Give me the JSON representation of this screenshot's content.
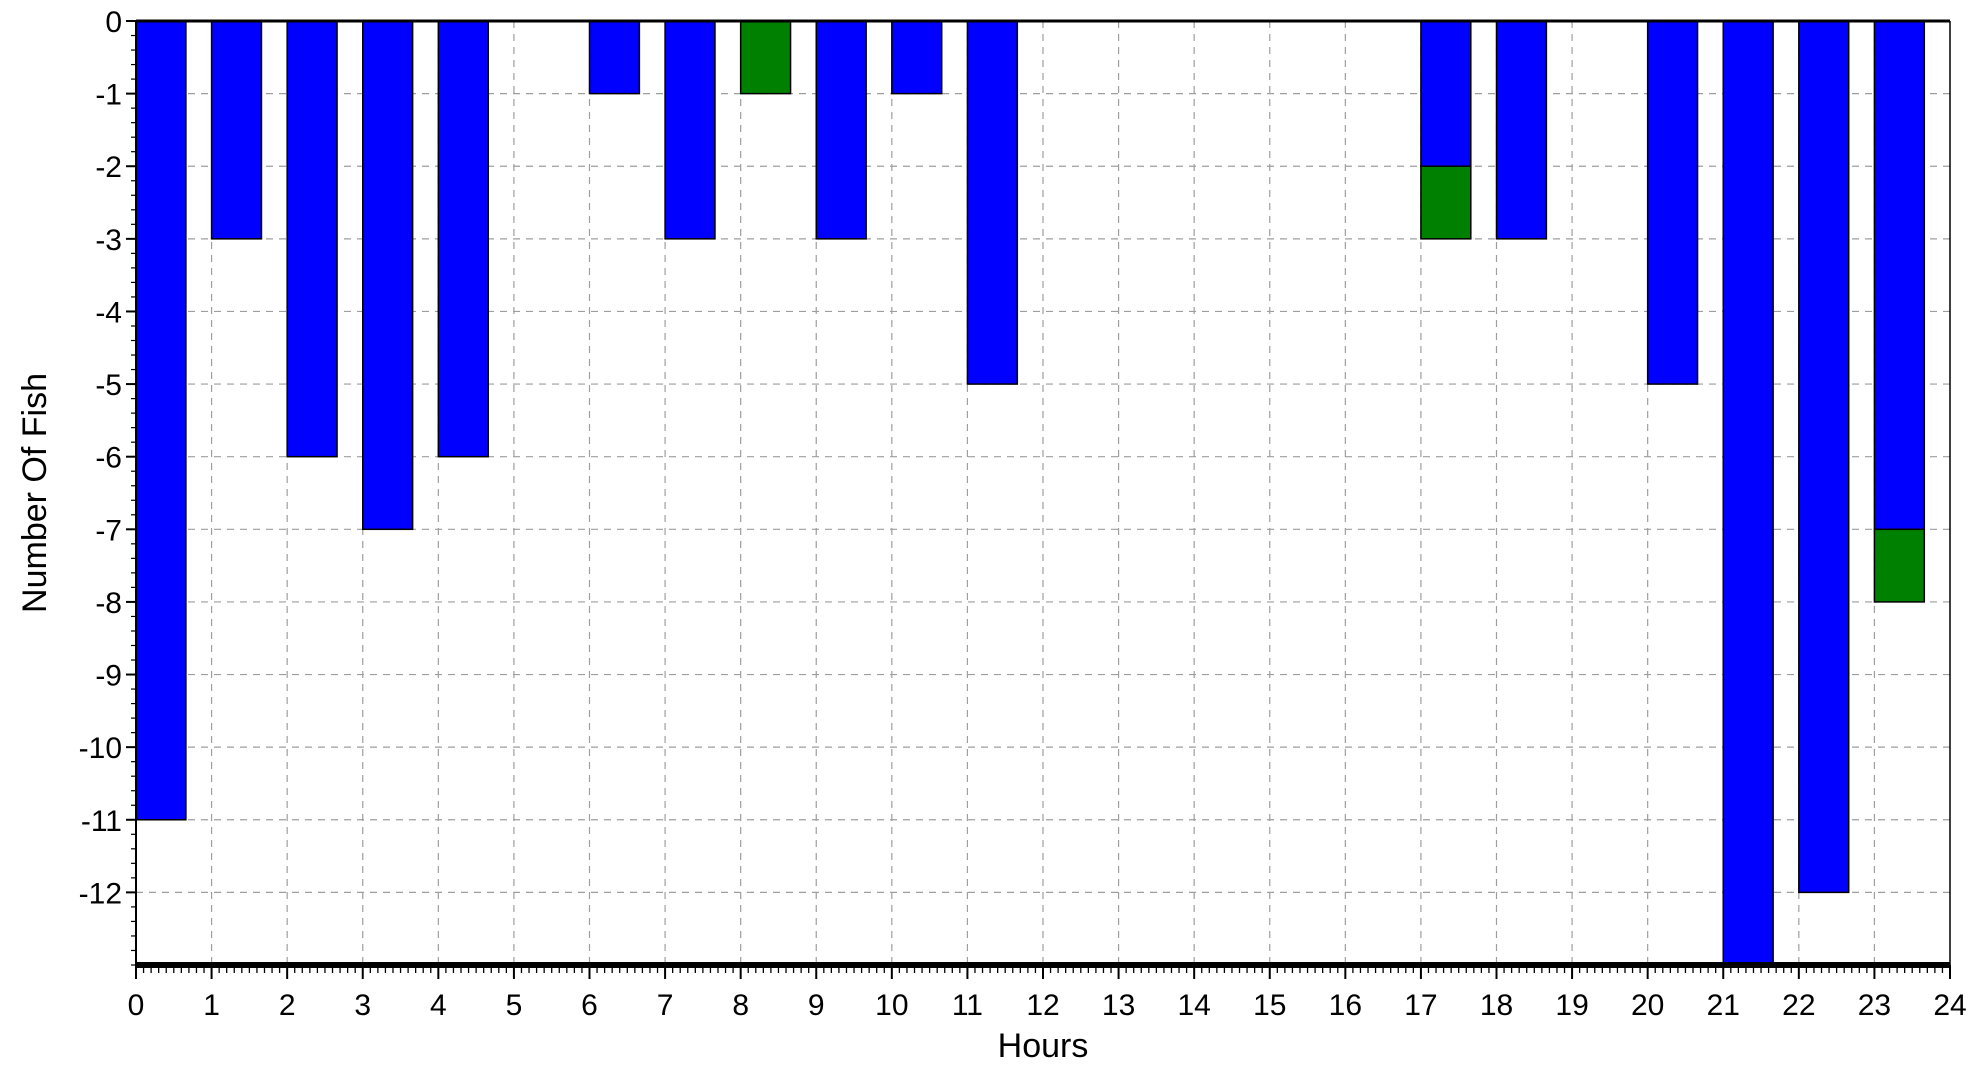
{
  "chart_data": {
    "type": "bar",
    "stacked": true,
    "xlabel": "Hours",
    "ylabel": "Number Of Fish",
    "xlim": [
      0,
      24
    ],
    "ylim": [
      -13,
      0
    ],
    "x_ticks": [
      "0",
      "1",
      "2",
      "3",
      "4",
      "5",
      "6",
      "7",
      "8",
      "9",
      "10",
      "11",
      "12",
      "13",
      "14",
      "15",
      "16",
      "17",
      "18",
      "19",
      "20",
      "21",
      "22",
      "23",
      "24"
    ],
    "y_ticks": [
      "0",
      "-1",
      "-2",
      "-3",
      "-4",
      "-5",
      "-6",
      "-7",
      "-8",
      "-9",
      "-10",
      "-11",
      "-12"
    ],
    "grid": true,
    "categories": [
      0,
      1,
      2,
      3,
      4,
      5,
      6,
      7,
      8,
      9,
      10,
      11,
      12,
      13,
      14,
      15,
      16,
      17,
      18,
      19,
      20,
      21,
      22,
      23
    ],
    "series": [
      {
        "color": "#0000ff",
        "values": [
          -11,
          -3,
          -6,
          -7,
          -6,
          0,
          -1,
          -3,
          0,
          -3,
          -1,
          -5,
          0,
          0,
          0,
          0,
          0,
          -2,
          -3,
          0,
          -5,
          -13,
          -12,
          -7
        ]
      },
      {
        "color": "#008000",
        "values": [
          0,
          0,
          0,
          0,
          0,
          0,
          0,
          0,
          -1,
          0,
          0,
          0,
          0,
          0,
          0,
          0,
          0,
          -1,
          0,
          0,
          0,
          0,
          0,
          -1
        ]
      }
    ]
  }
}
